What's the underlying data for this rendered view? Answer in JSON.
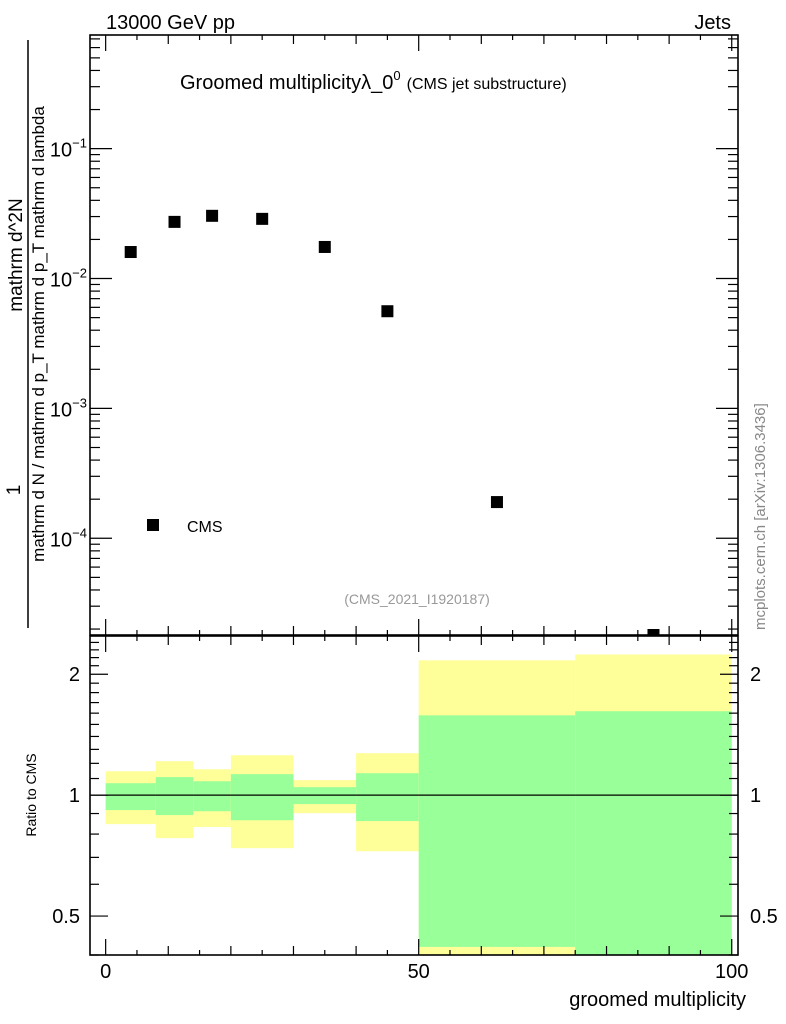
{
  "header": {
    "energy_label": "13000 GeV pp",
    "process_label": "Jets"
  },
  "side_label": "mcplots.cern.ch [arXiv:1306.3436]",
  "chart_data": [
    {
      "type": "scatter",
      "title_main": "Groomed multiplicityλ_0",
      "title_sup": "0",
      "title_sub": "(CMS jet substructure)",
      "analysis_id": "(CMS_2021_I1920187)",
      "ylabel_numerator": "mathrm d^2N",
      "ylabel_prefactor": "1",
      "ylabel_denominator": "mathrm d N / mathrm d p_T mathrm d p_T mathrm d lambda",
      "yscale": "log",
      "ylim": [
        1.8e-05,
        0.75
      ],
      "xlim": [
        -2.5,
        101
      ],
      "ytick_labels": [
        {
          "value": 0.1,
          "base": "10",
          "exp": "−1"
        },
        {
          "value": 0.01,
          "base": "10",
          "exp": "−2"
        },
        {
          "value": 0.001,
          "base": "10",
          "exp": "−3"
        },
        {
          "value": 0.0001,
          "base": "10",
          "exp": "−4"
        }
      ],
      "legend": {
        "entries": [
          "CMS"
        ],
        "placement": "bottom-left"
      },
      "series": [
        {
          "name": "CMS",
          "marker": "square",
          "color": "#000000",
          "x": [
            4,
            11,
            17,
            25,
            35,
            45,
            62.5,
            87.5
          ],
          "y": [
            0.016,
            0.0273,
            0.0304,
            0.0288,
            0.0175,
            0.0056,
            0.00019,
            1.8e-05
          ]
        }
      ]
    },
    {
      "type": "area",
      "ylabel": "Ratio to CMS",
      "xlabel": "groomed multiplicity",
      "yscale": "log",
      "ylim": [
        0.4,
        2.49
      ],
      "xlim": [
        -2.5,
        101
      ],
      "xtick_labels": [
        "0",
        "50",
        "100"
      ],
      "xtick_values": [
        0,
        50,
        100
      ],
      "ytick_labels": [
        "2",
        "1",
        "0.5"
      ],
      "ytick_values": [
        2,
        1,
        0.5
      ],
      "reference_line": 1,
      "colors": {
        "stat_band": "#99ff99",
        "total_band": "#ffff99"
      },
      "bin_edges": [
        0,
        8,
        14,
        20,
        30,
        40,
        50,
        75,
        100
      ],
      "bands": {
        "total_hi": [
          1.147,
          1.215,
          1.16,
          1.257,
          1.09,
          1.272,
          2.166,
          2.24
        ],
        "stat_hi": [
          1.071,
          1.109,
          1.083,
          1.128,
          1.047,
          1.134,
          1.58,
          1.618
        ],
        "stat_lo": [
          0.918,
          0.892,
          0.912,
          0.866,
          0.95,
          0.862,
          0.419,
          0.3
        ],
        "total_lo": [
          0.847,
          0.782,
          0.833,
          0.738,
          0.902,
          0.725,
          0.3,
          0.3
        ]
      }
    }
  ]
}
